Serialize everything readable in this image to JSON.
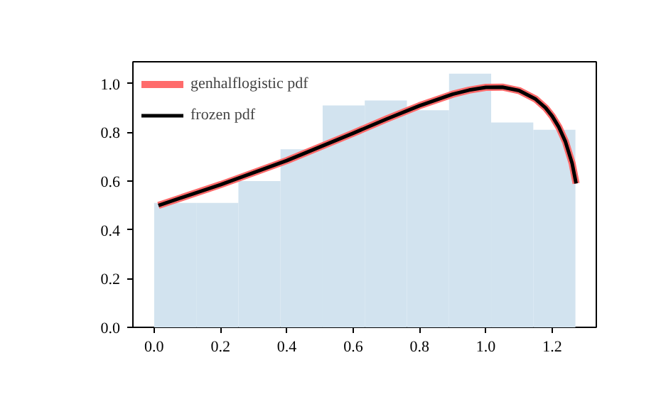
{
  "chart_data": {
    "type": "histogram",
    "color": "#d2e3ef",
    "bins": [
      0.0,
      0.127,
      0.254,
      0.381,
      0.508,
      0.635,
      0.762,
      0.889,
      1.016,
      1.143,
      1.27
    ],
    "values": [
      0.51,
      0.51,
      0.6,
      0.73,
      0.91,
      0.93,
      0.89,
      1.04,
      0.84,
      0.81
    ],
    "series": [
      {
        "name": "genhalflogistic pdf",
        "type": "line",
        "color": "#ff6b6b",
        "x": [
          0.013,
          0.2,
          0.4,
          0.6,
          0.7,
          0.8,
          0.9,
          0.95,
          1.0,
          1.05,
          1.1,
          1.15,
          1.18,
          1.2,
          1.22,
          1.24,
          1.26,
          1.272
        ],
        "values": [
          0.5,
          0.585,
          0.684,
          0.796,
          0.854,
          0.909,
          0.956,
          0.973,
          0.984,
          0.985,
          0.971,
          0.936,
          0.9,
          0.866,
          0.821,
          0.761,
          0.673,
          0.59
        ]
      },
      {
        "name": "frozen pdf",
        "type": "line",
        "color": "#000000",
        "x": [
          0.013,
          0.2,
          0.4,
          0.6,
          0.7,
          0.8,
          0.9,
          0.95,
          1.0,
          1.05,
          1.1,
          1.15,
          1.18,
          1.2,
          1.22,
          1.24,
          1.26,
          1.272
        ],
        "values": [
          0.5,
          0.585,
          0.684,
          0.796,
          0.854,
          0.909,
          0.956,
          0.973,
          0.984,
          0.985,
          0.971,
          0.936,
          0.9,
          0.866,
          0.821,
          0.761,
          0.673,
          0.59
        ]
      }
    ],
    "xlim": [
      -0.064,
      1.333
    ],
    "ylim": [
      0,
      1.089
    ],
    "xticks": [
      {
        "value": 0,
        "label": "0.0"
      },
      {
        "value": 0.2,
        "label": "0.2"
      },
      {
        "value": 0.4,
        "label": "0.4"
      },
      {
        "value": 0.6,
        "label": "0.6"
      },
      {
        "value": 0.8,
        "label": "0.8"
      },
      {
        "value": 1,
        "label": "1.0"
      },
      {
        "value": 1.2,
        "label": "1.2"
      }
    ],
    "yticks": [
      {
        "value": 0,
        "label": "0.0"
      },
      {
        "value": 0.2,
        "label": "0.2"
      },
      {
        "value": 0.4,
        "label": "0.4"
      },
      {
        "value": 0.6,
        "label": "0.6"
      },
      {
        "value": 0.8,
        "label": "0.8"
      },
      {
        "value": 1,
        "label": "1.0"
      }
    ],
    "grid": false,
    "legend": "top left"
  }
}
